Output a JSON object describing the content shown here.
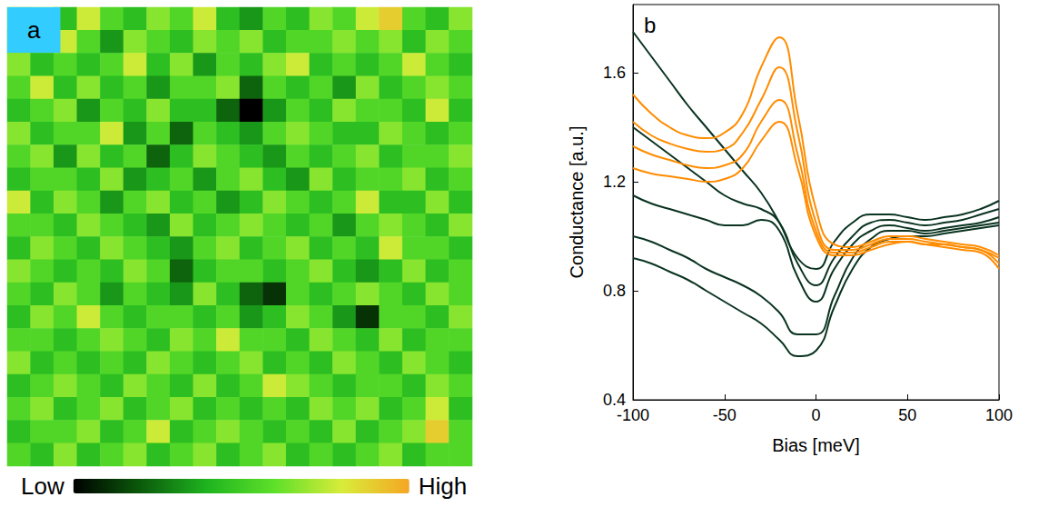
{
  "chart_data": [
    {
      "type": "heatmap",
      "title": "a",
      "tick_labels": false,
      "cells": [
        [
          5,
          6,
          4,
          7,
          5,
          4,
          6,
          5,
          7,
          4,
          3,
          5,
          4,
          6,
          5,
          7,
          8,
          5,
          4,
          6
        ],
        [
          4,
          5,
          7,
          5,
          3,
          6,
          5,
          4,
          6,
          5,
          6,
          4,
          5,
          5,
          6,
          5,
          6,
          4,
          6,
          5
        ],
        [
          6,
          4,
          5,
          4,
          5,
          7,
          4,
          6,
          3,
          5,
          4,
          6,
          7,
          4,
          5,
          4,
          5,
          7,
          5,
          4
        ],
        [
          5,
          7,
          4,
          6,
          4,
          5,
          3,
          5,
          5,
          6,
          2,
          5,
          4,
          5,
          3,
          6,
          4,
          5,
          6,
          5
        ],
        [
          4,
          5,
          6,
          3,
          5,
          4,
          6,
          4,
          4,
          2,
          0,
          3,
          5,
          4,
          6,
          5,
          5,
          4,
          7,
          4
        ],
        [
          6,
          4,
          5,
          5,
          7,
          3,
          5,
          2,
          5,
          4,
          3,
          5,
          6,
          5,
          4,
          4,
          6,
          5,
          4,
          5
        ],
        [
          5,
          6,
          3,
          6,
          4,
          5,
          2,
          4,
          6,
          5,
          4,
          3,
          5,
          4,
          5,
          6,
          4,
          5,
          5,
          6
        ],
        [
          4,
          5,
          5,
          4,
          6,
          3,
          4,
          5,
          3,
          5,
          6,
          4,
          3,
          6,
          4,
          5,
          5,
          6,
          4,
          5
        ],
        [
          7,
          4,
          6,
          5,
          3,
          5,
          6,
          4,
          5,
          3,
          4,
          6,
          5,
          4,
          5,
          7,
          4,
          4,
          6,
          4
        ],
        [
          5,
          5,
          4,
          6,
          5,
          4,
          3,
          6,
          4,
          5,
          6,
          5,
          4,
          5,
          3,
          5,
          6,
          5,
          4,
          6
        ],
        [
          4,
          6,
          5,
          4,
          6,
          5,
          4,
          3,
          5,
          6,
          4,
          5,
          6,
          4,
          5,
          4,
          7,
          5,
          5,
          4
        ],
        [
          6,
          5,
          4,
          5,
          4,
          6,
          5,
          2,
          4,
          5,
          5,
          4,
          5,
          6,
          4,
          3,
          4,
          6,
          4,
          5
        ],
        [
          5,
          4,
          6,
          5,
          3,
          5,
          4,
          3,
          6,
          4,
          2,
          1,
          5,
          4,
          5,
          6,
          5,
          4,
          6,
          5
        ],
        [
          4,
          6,
          5,
          7,
          5,
          4,
          5,
          5,
          4,
          5,
          3,
          4,
          6,
          5,
          3,
          1,
          5,
          5,
          4,
          6
        ],
        [
          5,
          5,
          4,
          5,
          6,
          5,
          4,
          6,
          5,
          7,
          5,
          5,
          4,
          6,
          5,
          4,
          6,
          4,
          5,
          5
        ],
        [
          6,
          4,
          5,
          4,
          5,
          4,
          6,
          5,
          4,
          5,
          6,
          4,
          5,
          4,
          6,
          5,
          4,
          6,
          5,
          4
        ],
        [
          4,
          5,
          6,
          5,
          4,
          6,
          5,
          4,
          6,
          4,
          5,
          7,
          6,
          5,
          4,
          5,
          5,
          4,
          6,
          5
        ],
        [
          5,
          6,
          4,
          5,
          6,
          4,
          5,
          6,
          4,
          5,
          4,
          5,
          4,
          6,
          5,
          6,
          4,
          5,
          7,
          4
        ],
        [
          4,
          5,
          5,
          6,
          4,
          5,
          7,
          4,
          5,
          6,
          5,
          4,
          5,
          4,
          6,
          4,
          5,
          6,
          8,
          5
        ],
        [
          5,
          4,
          6,
          4,
          5,
          6,
          4,
          5,
          6,
          4,
          5,
          6,
          4,
          5,
          4,
          5,
          6,
          4,
          5,
          5
        ]
      ],
      "colorbar": {
        "range": [
          0,
          9
        ],
        "ticks": [
          {
            "value": 0,
            "label": "Low"
          },
          {
            "value": 9,
            "label": "High"
          }
        ]
      }
    },
    {
      "type": "line",
      "title": "b",
      "xlabel": "Bias [meV]",
      "ylabel": "Conductance [a.u.]",
      "grid": false,
      "xlim": [
        -100,
        100
      ],
      "xticks": [
        -100,
        -50,
        0,
        50,
        100
      ],
      "ylim": [
        0.4,
        1.85
      ],
      "yticks": [
        0.4,
        0.8,
        1.2,
        1.6
      ],
      "x": [
        -100,
        -90,
        -80,
        -70,
        -60,
        -50,
        -40,
        -30,
        -20,
        -10,
        0,
        10,
        20,
        30,
        40,
        50,
        60,
        70,
        80,
        90,
        100
      ],
      "series": [
        {
          "color": "#0a3320",
          "values": [
            1.75,
            1.66,
            1.57,
            1.48,
            1.4,
            1.32,
            1.24,
            1.16,
            1.05,
            0.92,
            0.88,
            0.98,
            1.05,
            1.08,
            1.08,
            1.07,
            1.06,
            1.07,
            1.08,
            1.1,
            1.13
          ]
        },
        {
          "color": "#0a3320",
          "values": [
            1.4,
            1.35,
            1.3,
            1.25,
            1.2,
            1.15,
            1.12,
            1.1,
            1.05,
            0.9,
            0.82,
            0.92,
            1.0,
            1.05,
            1.06,
            1.05,
            1.04,
            1.05,
            1.06,
            1.08,
            1.1
          ]
        },
        {
          "color": "#0a3320",
          "values": [
            1.15,
            1.12,
            1.1,
            1.08,
            1.06,
            1.04,
            1.04,
            1.06,
            1.02,
            0.85,
            0.76,
            0.88,
            0.97,
            1.02,
            1.04,
            1.03,
            1.02,
            1.03,
            1.04,
            1.05,
            1.07
          ]
        },
        {
          "color": "#0a3320",
          "values": [
            1.0,
            0.98,
            0.95,
            0.92,
            0.88,
            0.85,
            0.82,
            0.78,
            0.72,
            0.64,
            0.64,
            0.78,
            0.92,
            0.99,
            1.02,
            1.02,
            1.01,
            1.02,
            1.03,
            1.04,
            1.05
          ]
        },
        {
          "color": "#0a3320",
          "values": [
            0.92,
            0.9,
            0.87,
            0.84,
            0.8,
            0.76,
            0.72,
            0.68,
            0.62,
            0.56,
            0.58,
            0.74,
            0.88,
            0.96,
            0.99,
            1.0,
            1.0,
            1.01,
            1.02,
            1.03,
            1.04
          ]
        },
        {
          "color": "#ff8c00",
          "values": [
            1.52,
            1.45,
            1.4,
            1.37,
            1.36,
            1.38,
            1.45,
            1.62,
            1.73,
            1.45,
            1.1,
            0.97,
            0.96,
            0.98,
            1.0,
            1.0,
            0.99,
            0.98,
            0.97,
            0.96,
            0.93
          ]
        },
        {
          "color": "#ff8c00",
          "values": [
            1.42,
            1.37,
            1.34,
            1.32,
            1.31,
            1.32,
            1.38,
            1.5,
            1.62,
            1.38,
            1.05,
            0.95,
            0.95,
            0.97,
            0.99,
            0.99,
            0.98,
            0.97,
            0.96,
            0.95,
            0.92
          ]
        },
        {
          "color": "#ff8c00",
          "values": [
            1.33,
            1.3,
            1.28,
            1.26,
            1.25,
            1.26,
            1.3,
            1.42,
            1.5,
            1.3,
            1.02,
            0.94,
            0.94,
            0.96,
            0.98,
            0.98,
            0.97,
            0.97,
            0.96,
            0.95,
            0.9
          ]
        },
        {
          "color": "#ff8c00",
          "values": [
            1.25,
            1.23,
            1.22,
            1.21,
            1.2,
            1.21,
            1.25,
            1.35,
            1.42,
            1.25,
            1.0,
            0.93,
            0.93,
            0.95,
            0.97,
            0.98,
            0.97,
            0.96,
            0.95,
            0.94,
            0.88
          ]
        }
      ]
    }
  ]
}
